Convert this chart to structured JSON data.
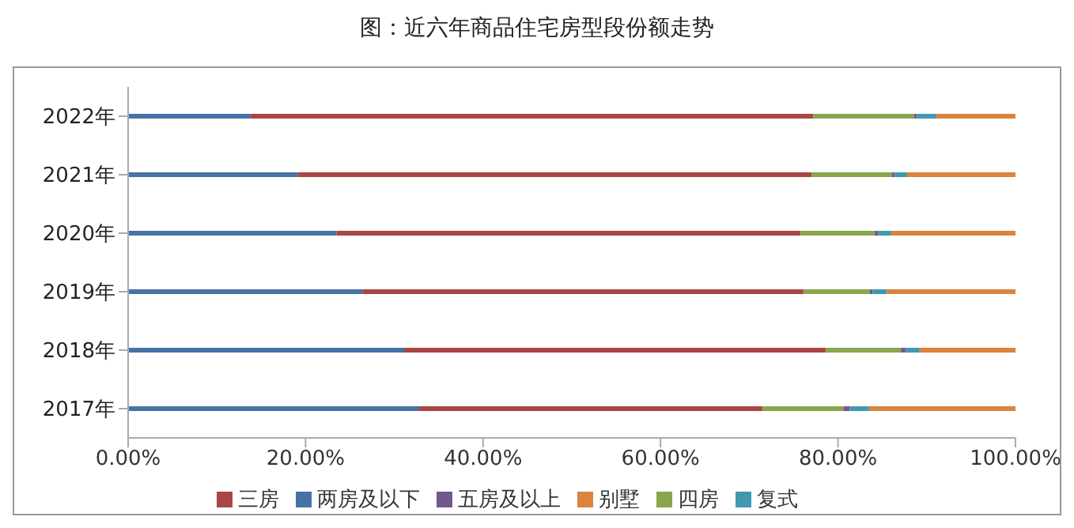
{
  "chart_data": {
    "type": "bar",
    "orientation": "horizontal",
    "stacked": true,
    "title": "图：近六年商品住宅房型段份额走势",
    "categories": [
      "2022年",
      "2021年",
      "2020年",
      "2019年",
      "2018年",
      "2017年"
    ],
    "series": [
      {
        "name": "两房及以下",
        "color": "#4572a7",
        "values": [
          13.8,
          19.1,
          23.5,
          26.4,
          31.1,
          32.8
        ]
      },
      {
        "name": "三房",
        "color": "#aa4643",
        "values": [
          63.4,
          57.9,
          52.3,
          49.7,
          47.5,
          38.7
        ]
      },
      {
        "name": "四房",
        "color": "#89a54e",
        "values": [
          11.4,
          9.1,
          8.3,
          7.5,
          8.5,
          9.1
        ]
      },
      {
        "name": "五房及以上",
        "color": "#71588f",
        "values": [
          0.3,
          0.3,
          0.4,
          0.3,
          0.5,
          0.7
        ]
      },
      {
        "name": "复式",
        "color": "#4198af",
        "values": [
          2.2,
          1.4,
          1.5,
          1.6,
          1.6,
          2.2
        ]
      },
      {
        "name": "别墅",
        "color": "#db843d",
        "values": [
          8.9,
          12.2,
          14.0,
          14.5,
          10.8,
          16.5
        ]
      }
    ],
    "xlim": [
      0,
      100
    ],
    "xticks": [
      {
        "value": 0,
        "label": "0.00%"
      },
      {
        "value": 20,
        "label": "20.00%"
      },
      {
        "value": 40,
        "label": "40.00%"
      },
      {
        "value": 60,
        "label": "60.00%"
      },
      {
        "value": 80,
        "label": "80.00%"
      },
      {
        "value": 100,
        "label": "100.00%"
      }
    ],
    "grid": false,
    "legend": "bottom"
  }
}
